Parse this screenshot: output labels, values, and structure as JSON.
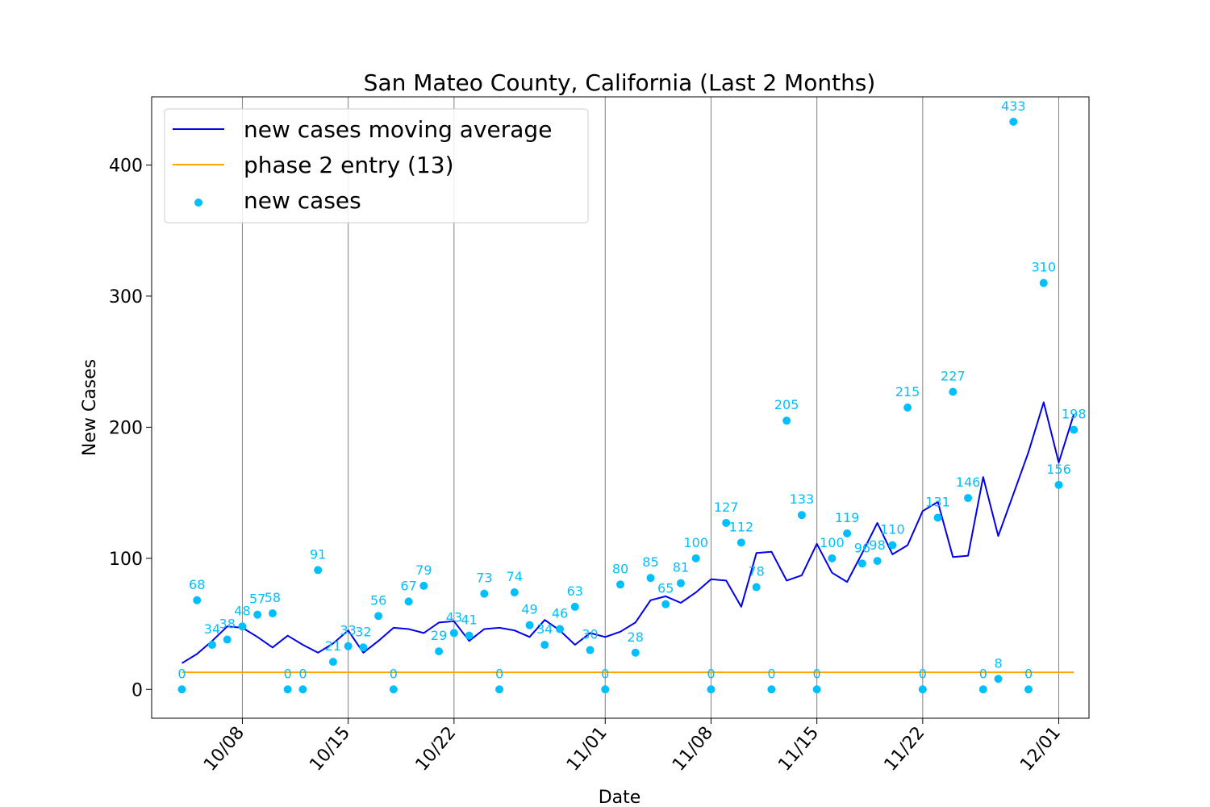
{
  "chart_data": {
    "type": "line",
    "title": "San Mateo County, California (Last 2 Months)",
    "xlabel": "Date",
    "ylabel": "New Cases",
    "ylim": [
      -22,
      452
    ],
    "yticks": [
      0,
      100,
      200,
      300,
      400
    ],
    "xlim": [
      "2020-10-02",
      "2020-12-03"
    ],
    "xticks": [
      {
        "date": "2020-10-08",
        "label": "10/08"
      },
      {
        "date": "2020-10-15",
        "label": "10/15"
      },
      {
        "date": "2020-10-22",
        "label": "10/22"
      },
      {
        "date": "2020-11-01",
        "label": "11/01"
      },
      {
        "date": "2020-11-08",
        "label": "11/08"
      },
      {
        "date": "2020-11-15",
        "label": "11/15"
      },
      {
        "date": "2020-11-22",
        "label": "11/22"
      },
      {
        "date": "2020-12-01",
        "label": "12/01"
      }
    ],
    "grid": "x",
    "legend_position": "top-left",
    "colors": {
      "moving_average": "#0000ee",
      "phase_2_entry": "#ffa500",
      "new_cases": "#00bfff"
    },
    "series": [
      {
        "name": "new cases moving average",
        "type": "line",
        "x": [
          "2020-10-04",
          "2020-10-05",
          "2020-10-06",
          "2020-10-07",
          "2020-10-08",
          "2020-10-09",
          "2020-10-10",
          "2020-10-11",
          "2020-10-12",
          "2020-10-13",
          "2020-10-14",
          "2020-10-15",
          "2020-10-16",
          "2020-10-17",
          "2020-10-18",
          "2020-10-19",
          "2020-10-20",
          "2020-10-21",
          "2020-10-22",
          "2020-10-23",
          "2020-10-24",
          "2020-10-25",
          "2020-10-26",
          "2020-10-27",
          "2020-10-28",
          "2020-10-29",
          "2020-10-30",
          "2020-10-31",
          "2020-11-01",
          "2020-11-02",
          "2020-11-03",
          "2020-11-04",
          "2020-11-05",
          "2020-11-06",
          "2020-11-07",
          "2020-11-08",
          "2020-11-09",
          "2020-11-10",
          "2020-11-11",
          "2020-11-12",
          "2020-11-13",
          "2020-11-14",
          "2020-11-15",
          "2020-11-16",
          "2020-11-17",
          "2020-11-18",
          "2020-11-19",
          "2020-11-20",
          "2020-11-21",
          "2020-11-22",
          "2020-11-23",
          "2020-11-24",
          "2020-11-25",
          "2020-11-26",
          "2020-11-27",
          "2020-11-28",
          "2020-11-29",
          "2020-11-30",
          "2020-12-01",
          "2020-12-02"
        ],
        "values": [
          20,
          27,
          37,
          48,
          47,
          40,
          32,
          41,
          34,
          28,
          35,
          45,
          28,
          37,
          47,
          46,
          43,
          51,
          52,
          37,
          46,
          47,
          45,
          40,
          53,
          45,
          34,
          43,
          40,
          44,
          51,
          68,
          71,
          66,
          74,
          84,
          83,
          63,
          104,
          105,
          83,
          87,
          111,
          89,
          82,
          104,
          127,
          103,
          110,
          136,
          143,
          101,
          102,
          162,
          117,
          149,
          181,
          219,
          173,
          210
        ]
      },
      {
        "name": "phase 2 entry (13)",
        "type": "hline",
        "value": 13,
        "x": [
          "2020-10-04",
          "2020-12-02"
        ]
      },
      {
        "name": "new cases",
        "type": "scatter",
        "x": [
          "2020-10-04",
          "2020-10-05",
          "2020-10-06",
          "2020-10-07",
          "2020-10-08",
          "2020-10-09",
          "2020-10-10",
          "2020-10-11",
          "2020-10-12",
          "2020-10-13",
          "2020-10-14",
          "2020-10-15",
          "2020-10-16",
          "2020-10-17",
          "2020-10-18",
          "2020-10-19",
          "2020-10-20",
          "2020-10-21",
          "2020-10-22",
          "2020-10-23",
          "2020-10-24",
          "2020-10-25",
          "2020-10-26",
          "2020-10-27",
          "2020-10-28",
          "2020-10-29",
          "2020-10-30",
          "2020-10-31",
          "2020-11-01",
          "2020-11-02",
          "2020-11-03",
          "2020-11-04",
          "2020-11-05",
          "2020-11-06",
          "2020-11-07",
          "2020-11-08",
          "2020-11-09",
          "2020-11-10",
          "2020-11-11",
          "2020-11-12",
          "2020-11-13",
          "2020-11-14",
          "2020-11-15",
          "2020-11-16",
          "2020-11-17",
          "2020-11-18",
          "2020-11-19",
          "2020-11-20",
          "2020-11-21",
          "2020-11-22",
          "2020-11-23",
          "2020-11-24",
          "2020-11-25",
          "2020-11-26",
          "2020-11-27",
          "2020-11-28",
          "2020-11-29",
          "2020-11-30",
          "2020-12-01",
          "2020-12-02"
        ],
        "values": [
          0,
          68,
          34,
          38,
          48,
          57,
          58,
          0,
          0,
          91,
          21,
          33,
          32,
          56,
          0,
          67,
          79,
          29,
          43,
          41,
          73,
          0,
          74,
          49,
          34,
          46,
          63,
          30,
          0,
          80,
          28,
          85,
          65,
          81,
          100,
          0,
          127,
          112,
          78,
          0,
          205,
          133,
          0,
          100,
          119,
          96,
          98,
          110,
          215,
          0,
          131,
          227,
          146,
          0,
          8,
          433,
          0,
          310,
          156,
          198
        ]
      }
    ]
  }
}
